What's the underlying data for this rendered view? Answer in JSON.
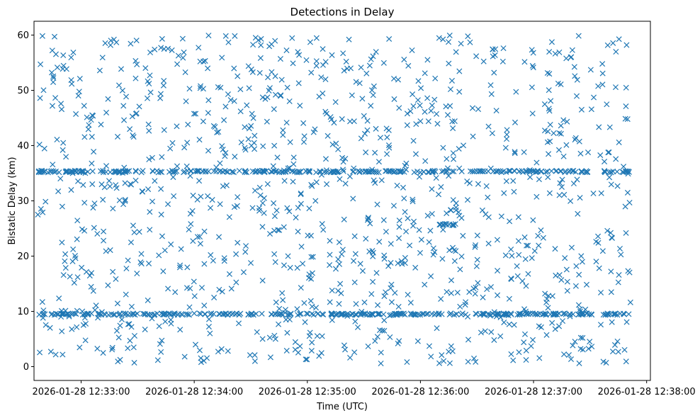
{
  "chart_data": {
    "type": "scatter",
    "title": "Detections in Delay",
    "xlabel": "Time (UTC)",
    "ylabel": "Bistatic Delay (km)",
    "x_start": "2026-01-28 12:32:35",
    "x_end": "2026-01-28 12:38:02",
    "xlim": [
      "2026-01-28 12:32:35",
      "2026-01-28 12:38:02"
    ],
    "ylim": [
      -2.5,
      62.5
    ],
    "x_ticks": [
      "2026-01-28 12:33:00",
      "2026-01-28 12:34:00",
      "2026-01-28 12:35:00",
      "2026-01-28 12:36:00",
      "2026-01-28 12:37:00",
      "2026-01-28 12:38:00"
    ],
    "y_ticks": [
      0,
      10,
      20,
      30,
      40,
      50,
      60
    ],
    "grid": false,
    "marker": "x",
    "series": [
      {
        "color": "#1f77b4",
        "x_range": [
          "2026-01-28 12:32:37",
          "2026-01-28 12:37:52"
        ],
        "uniform_points": 1150,
        "y_uniform_range": [
          0.5,
          60
        ],
        "bands": [
          {
            "y": 35.3,
            "count": 300
          },
          {
            "y": 9.5,
            "count": 320
          },
          {
            "y": 25.7,
            "x_range": [
              "2026-01-28 12:36:10",
              "2026-01-28 12:36:20"
            ],
            "count": 14
          }
        ]
      }
    ]
  }
}
